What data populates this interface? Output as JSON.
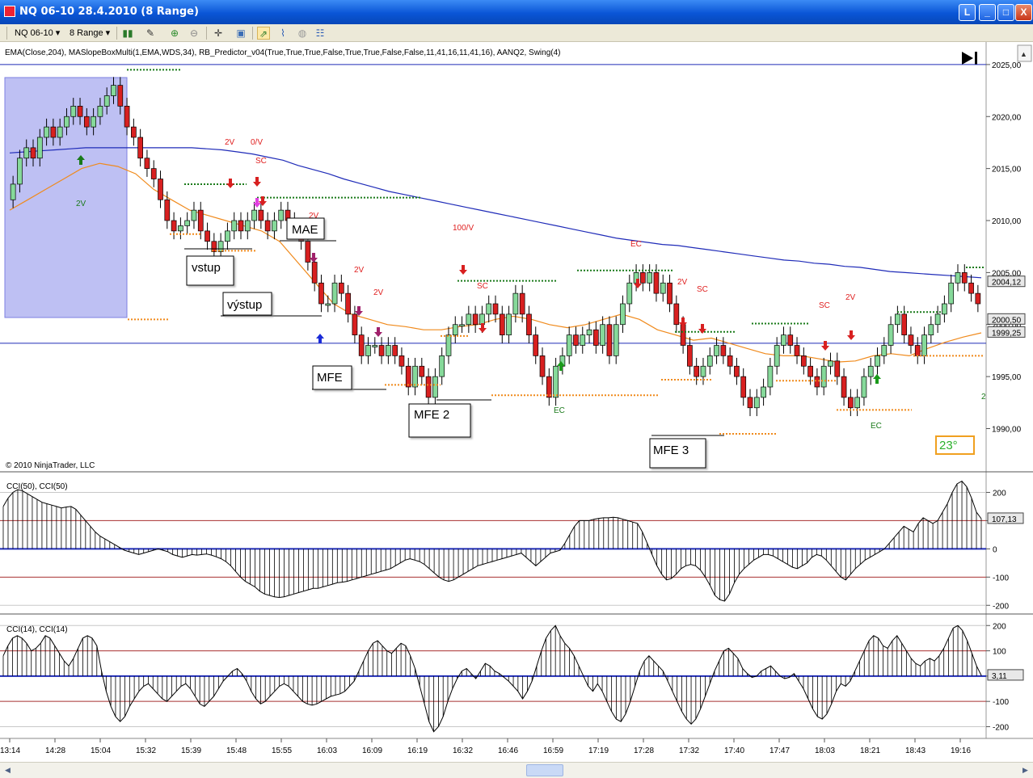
{
  "window": {
    "title": "NQ 06-10  28.4.2010 (8 Range)",
    "buttons": [
      "L",
      "_",
      "□",
      "X"
    ]
  },
  "toolbar": {
    "instrument": "NQ 06-10",
    "interval": "8 Range",
    "icons": [
      "bar-type-icon",
      "pencil-icon",
      "zoom-in-icon",
      "zoom-out-icon",
      "crosshair-icon",
      "properties-icon",
      "strategy-icon",
      "indicators-icon",
      "globe-icon",
      "data-box-icon"
    ]
  },
  "indicator_label": "EMA(Close,204), MASlopeBoxMulti(1,EMA,WDS,34), RB_Predictor_v04(True,True,True,False,True,True,False,False,11,41,16,11,41,16), AANQ2, Swing(4)",
  "copyright": "© 2010 NinjaTrader, LLC",
  "angle_box": "23°",
  "colors": {
    "up_candle": "#86d99a",
    "down_candle": "#d82020",
    "ema204": "#1f2bb8",
    "ema_fast": "#f08a1c",
    "blue_box": "#aeb0f0",
    "cci": "#000000",
    "signal_red": "#e02020",
    "signal_green": "#1a7a1a"
  },
  "time_axis": [
    "13:14",
    "14:28",
    "15:04",
    "15:32",
    "15:39",
    "15:48",
    "15:55",
    "16:03",
    "16:09",
    "16:19",
    "16:32",
    "16:46",
    "16:59",
    "17:19",
    "17:28",
    "17:32",
    "17:40",
    "17:47",
    "18:03",
    "18:21",
    "18:43",
    "19:16"
  ],
  "annotations": {
    "vstup": "vstup",
    "vystup": "výstup",
    "mae": "MAE",
    "mfe": "MFE",
    "mfe2": "MFE 2",
    "mfe3": "MFE 3"
  },
  "chart_labels": {
    "sc": "SC",
    "ec": "EC",
    "two_v": "2V",
    "zero_v": "0/V",
    "hundred_v": "100/V",
    "edge_2": "2"
  },
  "chart_data": [
    {
      "type": "candlestick",
      "title": "NQ 06-10 8 Range",
      "ylim": [
        1986,
        2026
      ],
      "y_ticks": [
        "1990,00",
        "1995,00",
        "2000,00",
        "2005,00",
        "2010,00",
        "2015,00",
        "2020,00",
        "2025,00"
      ],
      "price_markers": [
        "2004,12",
        "2000,50",
        "1999,25"
      ],
      "closes": [
        2013.5,
        2016,
        2017,
        2016,
        2018,
        2019,
        2018,
        2019,
        2020,
        2021,
        2020,
        2019,
        2020,
        2021,
        2022,
        2023,
        2021,
        2019,
        2018,
        2016,
        2015,
        2014,
        2012,
        2010,
        2009,
        2009.5,
        2010,
        2011,
        2009,
        2008,
        2007,
        2008,
        2009,
        2010,
        2009,
        2010,
        2011,
        2010,
        2009,
        2010,
        2011,
        2010,
        2009,
        2008,
        2006,
        2004,
        2002,
        2002,
        2004,
        2003,
        2001,
        1999,
        1997,
        1998,
        1998,
        1997,
        1998,
        1997,
        1996,
        1994,
        1996,
        1995,
        1993,
        1995,
        1997,
        1999,
        2000,
        2000,
        2001,
        2000,
        2001,
        2002,
        2001,
        1999,
        2001,
        2003,
        2001,
        1999,
        1997,
        1995,
        1993,
        1996,
        1997,
        1999,
        1998,
        1999,
        1999.5,
        1998,
        2000,
        1997,
        2000,
        2002,
        2004,
        2005,
        2004,
        2005,
        2003,
        2004,
        2002,
        2000,
        1998,
        1996,
        1995,
        1996,
        1997,
        1998,
        1997,
        1996,
        1995,
        1993,
        1992,
        1993,
        1994,
        1996,
        1998,
        1999,
        1998,
        1997,
        1996,
        1995,
        1994,
        1996,
        1996.5,
        1995,
        1993,
        1992,
        1993,
        1995,
        1996,
        1997,
        1998,
        2000,
        2001,
        1999,
        1998,
        1997,
        1999,
        2000,
        2001,
        2002,
        2004,
        2005,
        2004,
        2003,
        2002
      ],
      "ema204": [
        2016.5,
        2016.6,
        2016.7,
        2016.8,
        2016.9,
        2017,
        2017,
        2017,
        2017,
        2017,
        2017,
        2017,
        2017,
        2016.9,
        2016.8,
        2016.6,
        2016.4,
        2016.1,
        2015.8,
        2015.3,
        2014.9,
        2014.5,
        2014,
        2013.6,
        2013.2,
        2012.8,
        2012.5,
        2012.2,
        2011.9,
        2011.6,
        2011.3,
        2011,
        2010.7,
        2010.4,
        2010.1,
        2009.8,
        2009.5,
        2009.2,
        2008.9,
        2008.6,
        2008.3,
        2008.1,
        2007.9,
        2007.7,
        2007.6,
        2007.4,
        2007.2,
        2007,
        2006.8,
        2006.6,
        2006.4,
        2006.2,
        2006.1,
        2005.9,
        2005.8,
        2005.6,
        2005.5,
        2005.3,
        2005.1,
        2005,
        2004.9,
        2004.8,
        2004.7,
        2004.6,
        2004.5
      ],
      "ema_fast": [
        2011,
        2012,
        2013,
        2014,
        2015,
        2015.5,
        2015.2,
        2014.5,
        2013,
        2012,
        2011,
        2010.5,
        2010,
        2009.5,
        2009,
        2008,
        2006,
        2004,
        2002,
        2001,
        2000.5,
        2000,
        1999.8,
        1999.5,
        1999.5,
        1999.8,
        2000,
        2000.5,
        2000.8,
        2000.5,
        2000,
        1999.7,
        2000,
        2000.5,
        2001,
        2000.5,
        1999.5,
        1999,
        1998.5,
        1998.7,
        1998.2,
        1997.7,
        1997.2,
        1997,
        1997,
        1996.7,
        1996.4,
        1996.5,
        1997,
        1997.2,
        1997,
        1997.7,
        1998.3,
        1998.8,
        1999.2
      ]
    },
    {
      "type": "bar",
      "title": "CCI(50), CCI(50)",
      "ylim": [
        -225,
        250
      ],
      "y_ticks": [
        "200",
        "100",
        "0",
        "-100",
        "-200"
      ],
      "last_value": "107,13",
      "values": [
        150,
        180,
        200,
        210,
        205,
        195,
        185,
        175,
        165,
        160,
        155,
        150,
        145,
        148,
        150,
        140,
        120,
        100,
        80,
        60,
        45,
        35,
        25,
        15,
        5,
        -5,
        -10,
        -15,
        -20,
        -15,
        -10,
        -5,
        0,
        -5,
        -10,
        -20,
        -25,
        -30,
        -25,
        -20,
        -22,
        -20,
        -18,
        -22,
        -28,
        -35,
        -45,
        -60,
        -80,
        -100,
        -115,
        -125,
        -135,
        -150,
        -160,
        -165,
        -170,
        -172,
        -170,
        -165,
        -160,
        -155,
        -150,
        -145,
        -140,
        -140,
        -135,
        -130,
        -125,
        -120,
        -118,
        -115,
        -110,
        -105,
        -100,
        -95,
        -90,
        -85,
        -80,
        -75,
        -70,
        -60,
        -50,
        -40,
        -35,
        -40,
        -45,
        -55,
        -70,
        -85,
        -100,
        -110,
        -115,
        -110,
        -100,
        -90,
        -80,
        -70,
        -60,
        -55,
        -50,
        -45,
        -40,
        -35,
        -30,
        -25,
        -20,
        -15,
        -30,
        -45,
        -60,
        -45,
        -30,
        -15,
        -10,
        -5,
        20,
        50,
        80,
        100,
        100,
        100,
        105,
        108,
        110,
        110,
        112,
        110,
        105,
        100,
        95,
        90,
        60,
        20,
        -20,
        -60,
        -90,
        -110,
        -105,
        -90,
        -70,
        -60,
        -55,
        -60,
        -75,
        -100,
        -130,
        -165,
        -180,
        -185,
        -160,
        -120,
        -90,
        -70,
        -55,
        -40,
        -30,
        -20,
        -20,
        -25,
        -35,
        -45,
        -55,
        -65,
        -70,
        -60,
        -50,
        -30,
        -20,
        -25,
        -40,
        -60,
        -80,
        -100,
        -110,
        -90,
        -70,
        -55,
        -40,
        -30,
        -20,
        -10,
        0,
        20,
        40,
        60,
        80,
        70,
        60,
        90,
        110,
        100,
        90,
        100,
        130,
        160,
        200,
        230,
        240,
        220,
        180,
        130,
        107
      ]
    },
    {
      "type": "bar",
      "title": "CCI(14), CCI(14)",
      "ylim": [
        -240,
        220
      ],
      "y_ticks": [
        "200",
        "100",
        "0",
        "-100",
        "-200"
      ],
      "last_value": "3,11",
      "values": [
        80,
        120,
        150,
        160,
        150,
        130,
        100,
        110,
        130,
        160,
        150,
        120,
        90,
        60,
        40,
        70,
        110,
        150,
        160,
        150,
        120,
        20,
        -60,
        -120,
        -160,
        -180,
        -160,
        -120,
        -90,
        -60,
        -40,
        -30,
        -50,
        -70,
        -90,
        -100,
        -80,
        -60,
        -40,
        -30,
        -50,
        -80,
        -110,
        -120,
        -100,
        -80,
        -50,
        -20,
        0,
        20,
        30,
        10,
        -20,
        -60,
        -90,
        -110,
        -100,
        -80,
        -60,
        -40,
        -30,
        -40,
        -60,
        -80,
        -100,
        -110,
        -115,
        -110,
        -100,
        -90,
        -80,
        -75,
        -70,
        -60,
        -40,
        -20,
        20,
        60,
        100,
        130,
        140,
        120,
        100,
        90,
        110,
        130,
        120,
        80,
        30,
        -40,
        -110,
        -180,
        -220,
        -200,
        -160,
        -100,
        -50,
        -10,
        20,
        30,
        10,
        -10,
        20,
        50,
        40,
        20,
        10,
        -5,
        -20,
        -40,
        -60,
        -90,
        -60,
        -20,
        40,
        100,
        150,
        180,
        200,
        160,
        130,
        110,
        80,
        40,
        0,
        -40,
        -60,
        -30,
        -60,
        -100,
        -140,
        -170,
        -180,
        -150,
        -100,
        -40,
        20,
        60,
        80,
        60,
        40,
        20,
        -20,
        -60,
        -100,
        -140,
        -170,
        -190,
        -170,
        -130,
        -80,
        -30,
        20,
        60,
        100,
        110,
        90,
        70,
        30,
        10,
        -5,
        0,
        20,
        30,
        40,
        20,
        0,
        -10,
        -5,
        10,
        -20,
        -50,
        -90,
        -130,
        -160,
        -170,
        -150,
        -110,
        -60,
        -30,
        -40,
        -20,
        20,
        60,
        100,
        140,
        160,
        150,
        120,
        110,
        140,
        160,
        130,
        100,
        70,
        50,
        40,
        60,
        70,
        60,
        80,
        110,
        150,
        190,
        200,
        180,
        140,
        90,
        40,
        3
      ]
    }
  ]
}
